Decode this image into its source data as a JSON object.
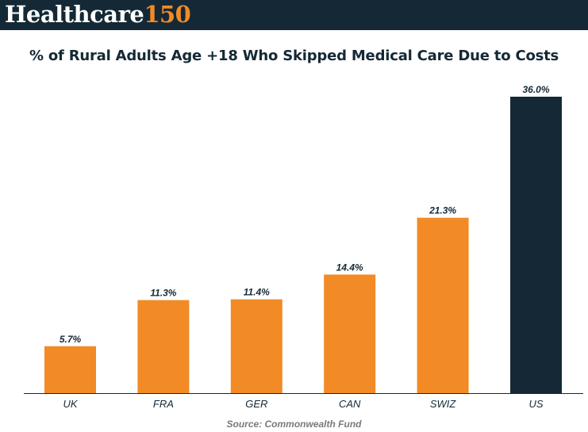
{
  "header": {
    "logo_word": "Healthcare",
    "logo_number": "150",
    "background_color": "#142935",
    "accent_color": "#f28a26"
  },
  "chart_data": {
    "type": "bar",
    "title": "% of Rural Adults Age +18 Who Skipped Medical Care Due to Costs",
    "categories": [
      "UK",
      "FRA",
      "GER",
      "CAN",
      "SWIZ",
      "US"
    ],
    "values": [
      5.7,
      11.3,
      11.4,
      14.4,
      21.3,
      36.0
    ],
    "data_labels": [
      "5.7%",
      "11.3%",
      "11.4%",
      "14.4%",
      "21.3%",
      "36.0%"
    ],
    "colors": [
      "#f28a26",
      "#f28a26",
      "#f28a26",
      "#f28a26",
      "#f28a26",
      "#142935"
    ],
    "xlabel": "",
    "ylabel": "",
    "ylim": [
      0,
      36.0
    ],
    "grid": false,
    "legend": "none"
  },
  "source": "Source: Commonwealth Fund"
}
